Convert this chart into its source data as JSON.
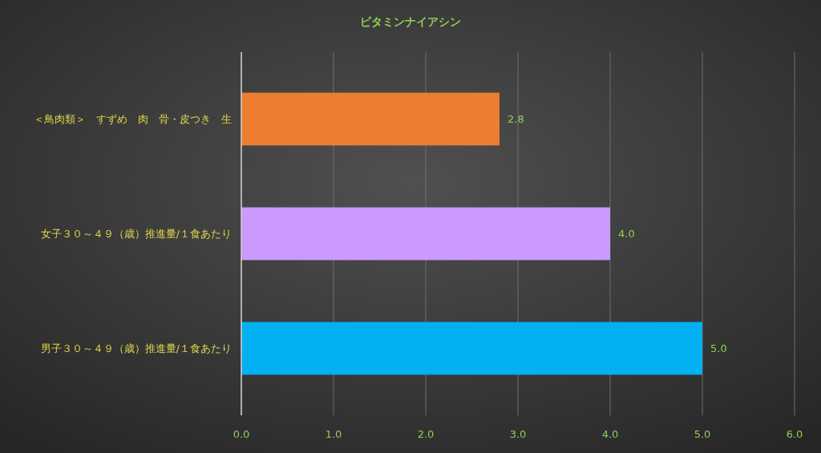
{
  "chart_data": {
    "type": "bar",
    "orientation": "horizontal",
    "title": "ビタミンナイアシン",
    "categories": [
      "＜鳥肉類＞　すずめ　肉　骨・皮つき　生",
      "女子３０～４９（歳）推進量/１食あたり",
      "男子３０～４９（歳）推進量/１食あたり"
    ],
    "values": [
      2.8,
      4.0,
      5.0
    ],
    "colors": [
      "#ed7d31",
      "#cc99ff",
      "#00b0f0"
    ],
    "value_labels": [
      "2.8",
      "4.0",
      "5.0"
    ],
    "xlim": [
      0,
      6
    ],
    "xticks": [
      {
        "value": 0,
        "label": "0.0"
      },
      {
        "value": 1,
        "label": "1.0"
      },
      {
        "value": 2,
        "label": "2.0"
      },
      {
        "value": 3,
        "label": "3.0"
      },
      {
        "value": 4,
        "label": "4.0"
      },
      {
        "value": 5,
        "label": "5.0"
      },
      {
        "value": 6,
        "label": "6.0"
      }
    ],
    "grid": "x"
  }
}
